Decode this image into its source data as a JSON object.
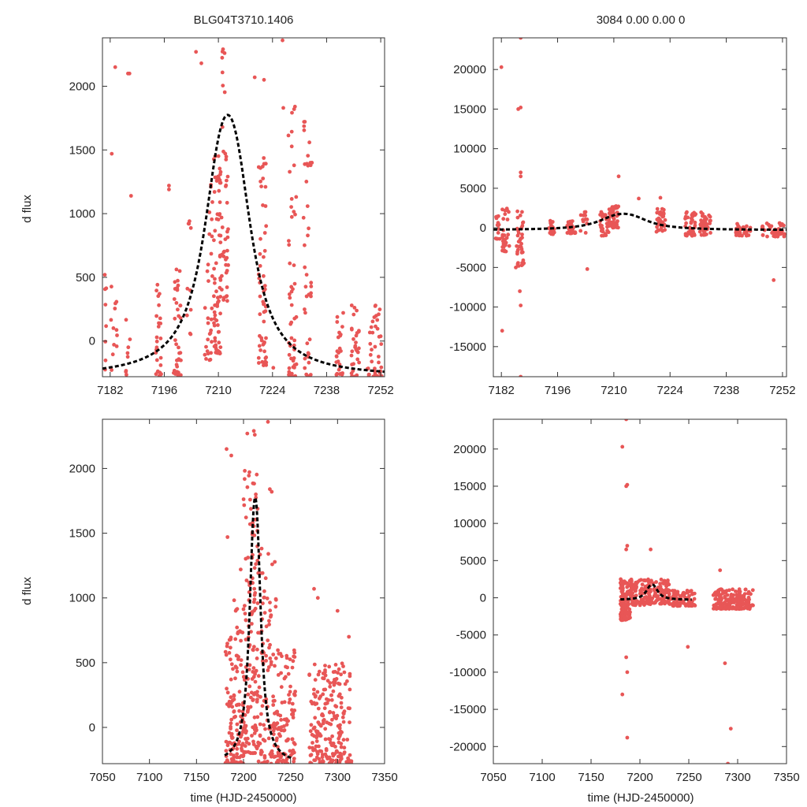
{
  "figure": {
    "title_left": "BLG04T3710.1406",
    "title_right": "3084  0.00  0.00  0",
    "colors": {
      "points": "#e85656",
      "model": "#000000",
      "frame": "#333333"
    }
  },
  "chart_data": [
    {
      "id": "top-left",
      "type": "scatter",
      "title": "BLG04T3710.1406",
      "xlabel": "",
      "ylabel": "d flux",
      "xlim": [
        7180,
        7253
      ],
      "ylim": [
        -280,
        2380
      ],
      "xticks": [
        7182,
        7196,
        7210,
        7224,
        7238,
        7252
      ],
      "yticks": [
        0,
        500,
        1000,
        1500,
        2000
      ],
      "model": {
        "t0": 7212.4,
        "amp": 2060,
        "base": -285,
        "tau": 4.6,
        "xrange": [
          7180,
          7253
        ]
      },
      "clusters": [
        {
          "x0": 7180.6,
          "x1": 7181.6,
          "n": 8,
          "ymin": -280,
          "ymax": 600
        },
        {
          "x0": 7182.2,
          "x1": 7183.8,
          "n": 12,
          "ymin": -280,
          "ymax": 450
        },
        {
          "x0": 7186.0,
          "x1": 7187.6,
          "n": 8,
          "ymin": -280,
          "ymax": 250
        },
        {
          "x0": 7193.8,
          "x1": 7195.2,
          "n": 26,
          "ymin": -280,
          "ymax": 480
        },
        {
          "x0": 7198.4,
          "x1": 7200.4,
          "n": 36,
          "ymin": -280,
          "ymax": 600
        },
        {
          "x0": 7201.6,
          "x1": 7203.4,
          "n": 10,
          "ymin": -200,
          "ymax": 1050
        },
        {
          "x0": 7206.4,
          "x1": 7208.6,
          "n": 30,
          "ymin": -150,
          "ymax": 1300
        },
        {
          "x0": 7208.8,
          "x1": 7210.6,
          "n": 70,
          "ymin": -100,
          "ymax": 1500
        },
        {
          "x0": 7210.8,
          "x1": 7212.6,
          "n": 40,
          "ymin": 300,
          "ymax": 2300
        },
        {
          "x0": 7220.4,
          "x1": 7222.4,
          "n": 55,
          "ymin": -200,
          "ymax": 1500
        },
        {
          "x0": 7228.0,
          "x1": 7230.2,
          "n": 50,
          "ymin": -280,
          "ymax": 1850
        },
        {
          "x0": 7232.0,
          "x1": 7234.0,
          "n": 40,
          "ymin": -280,
          "ymax": 1800
        },
        {
          "x0": 7240.4,
          "x1": 7242.4,
          "n": 25,
          "ymin": -280,
          "ymax": 280
        },
        {
          "x0": 7244.4,
          "x1": 7246.4,
          "n": 30,
          "ymin": -280,
          "ymax": 300
        },
        {
          "x0": 7248.4,
          "x1": 7252.6,
          "n": 40,
          "ymin": -280,
          "ymax": 300
        }
      ],
      "outliers": [
        {
          "x": 7183.3,
          "y": 2150
        },
        {
          "x": 7182.4,
          "y": 1470
        },
        {
          "x": 7186.6,
          "y": 2100
        },
        {
          "x": 7187.0,
          "y": 2100
        },
        {
          "x": 7187.4,
          "y": 1140
        },
        {
          "x": 7197.2,
          "y": 1220
        },
        {
          "x": 7197.2,
          "y": 1190
        },
        {
          "x": 7204.2,
          "y": 2270
        },
        {
          "x": 7205.6,
          "y": 2180
        },
        {
          "x": 7211.2,
          "y": 2290
        },
        {
          "x": 7211.6,
          "y": 2260
        },
        {
          "x": 7219.4,
          "y": 2070
        },
        {
          "x": 7221.8,
          "y": 2050
        },
        {
          "x": 7226.6,
          "y": 2360
        },
        {
          "x": 7226.8,
          "y": 1830
        },
        {
          "x": 7229.6,
          "y": 1820
        },
        {
          "x": 7234.2,
          "y": 1400
        },
        {
          "x": 7224.2,
          "y": -210
        }
      ]
    },
    {
      "id": "top-right",
      "type": "scatter",
      "title": "3084  0.00  0.00  0",
      "xlabel": "",
      "ylabel": "",
      "xlim": [
        7180,
        7253
      ],
      "ylim": [
        -18800,
        24000
      ],
      "xticks": [
        7182,
        7196,
        7210,
        7224,
        7238,
        7252
      ],
      "yticks": [
        -15000,
        -10000,
        -5000,
        0,
        5000,
        10000,
        15000,
        20000
      ],
      "model": {
        "t0": 7212.4,
        "amp": 2060,
        "base": -285,
        "tau": 4.6,
        "xrange": [
          7180,
          7253
        ]
      },
      "clusters": [
        {
          "x0": 7180.6,
          "x1": 7181.6,
          "n": 14,
          "ymin": -1400,
          "ymax": 1500
        },
        {
          "x0": 7182.2,
          "x1": 7184.0,
          "n": 30,
          "ymin": -3000,
          "ymax": 2500
        },
        {
          "x0": 7185.8,
          "x1": 7187.6,
          "n": 40,
          "ymin": -5000,
          "ymax": 2500
        },
        {
          "x0": 7193.8,
          "x1": 7195.4,
          "n": 25,
          "ymin": -800,
          "ymax": 900
        },
        {
          "x0": 7198.4,
          "x1": 7200.6,
          "n": 30,
          "ymin": -700,
          "ymax": 900
        },
        {
          "x0": 7201.6,
          "x1": 7203.4,
          "n": 12,
          "ymin": -700,
          "ymax": 2500
        },
        {
          "x0": 7206.4,
          "x1": 7208.8,
          "n": 28,
          "ymin": -1000,
          "ymax": 2000
        },
        {
          "x0": 7208.8,
          "x1": 7211.2,
          "n": 45,
          "ymin": 0,
          "ymax": 2800
        },
        {
          "x0": 7220.6,
          "x1": 7222.8,
          "n": 35,
          "ymin": -500,
          "ymax": 2500
        },
        {
          "x0": 7227.6,
          "x1": 7230.4,
          "n": 45,
          "ymin": -1000,
          "ymax": 2000
        },
        {
          "x0": 7231.4,
          "x1": 7234.2,
          "n": 45,
          "ymin": -900,
          "ymax": 2000
        },
        {
          "x0": 7240.4,
          "x1": 7244.0,
          "n": 35,
          "ymin": -1000,
          "ymax": 700
        },
        {
          "x0": 7246.8,
          "x1": 7252.6,
          "n": 45,
          "ymin": -1100,
          "ymax": 700
        }
      ],
      "outliers": [
        {
          "x": 7182.0,
          "y": 20300
        },
        {
          "x": 7186.8,
          "y": 24000
        },
        {
          "x": 7186.2,
          "y": 15000
        },
        {
          "x": 7186.8,
          "y": 15200
        },
        {
          "x": 7186.8,
          "y": 7000
        },
        {
          "x": 7186.8,
          "y": 6500
        },
        {
          "x": 7182.2,
          "y": -13000
        },
        {
          "x": 7186.8,
          "y": -9800
        },
        {
          "x": 7186.6,
          "y": -8000
        },
        {
          "x": 7186.8,
          "y": -18800
        },
        {
          "x": 7185.6,
          "y": -5000
        },
        {
          "x": 7211.2,
          "y": 6500
        },
        {
          "x": 7221.6,
          "y": 3800
        },
        {
          "x": 7216.2,
          "y": 3700
        },
        {
          "x": 7203.4,
          "y": -5200
        },
        {
          "x": 7249.8,
          "y": -6600
        }
      ]
    },
    {
      "id": "bottom-left",
      "type": "scatter",
      "title": "",
      "xlabel": "time (HJD-2450000)",
      "ylabel": "d flux",
      "xlim": [
        7050,
        7350
      ],
      "ylim": [
        -280,
        2380
      ],
      "xticks": [
        7050,
        7100,
        7150,
        7200,
        7250,
        7300,
        7350
      ],
      "yticks": [
        0,
        500,
        1000,
        1500,
        2000
      ],
      "model": {
        "t0": 7212.4,
        "amp": 2060,
        "base": -285,
        "tau": 4.6,
        "xrange": [
          7180,
          7253
        ]
      },
      "clusters": [
        {
          "x0": 7180,
          "x1": 7190,
          "n": 60,
          "ymin": -280,
          "ymax": 700
        },
        {
          "x0": 7190,
          "x1": 7200,
          "n": 70,
          "ymin": -280,
          "ymax": 1000
        },
        {
          "x0": 7200,
          "x1": 7215,
          "n": 140,
          "ymin": -200,
          "ymax": 2000
        },
        {
          "x0": 7215,
          "x1": 7235,
          "n": 110,
          "ymin": -280,
          "ymax": 1400
        },
        {
          "x0": 7235,
          "x1": 7255,
          "n": 100,
          "ymin": -280,
          "ymax": 600
        },
        {
          "x0": 7270,
          "x1": 7295,
          "n": 120,
          "ymin": -280,
          "ymax": 500
        },
        {
          "x0": 7295,
          "x1": 7315,
          "n": 90,
          "ymin": -280,
          "ymax": 500
        }
      ],
      "outliers": [
        {
          "x": 7182,
          "y": 2150
        },
        {
          "x": 7183,
          "y": 1470
        },
        {
          "x": 7187,
          "y": 2100
        },
        {
          "x": 7197,
          "y": 1220
        },
        {
          "x": 7204,
          "y": 2270
        },
        {
          "x": 7211,
          "y": 2290
        },
        {
          "x": 7212,
          "y": 2260
        },
        {
          "x": 7226,
          "y": 2360
        },
        {
          "x": 7228,
          "y": 1840
        },
        {
          "x": 7230,
          "y": 1820
        },
        {
          "x": 7275,
          "y": 1070
        },
        {
          "x": 7279,
          "y": 1000
        },
        {
          "x": 7300,
          "y": 900
        },
        {
          "x": 7312,
          "y": 700
        }
      ]
    },
    {
      "id": "bottom-right",
      "type": "scatter",
      "title": "",
      "xlabel": "time (HJD-2450000)",
      "ylabel": "",
      "xlim": [
        7050,
        7350
      ],
      "ylim": [
        -22300,
        24000
      ],
      "xticks": [
        7050,
        7100,
        7150,
        7200,
        7250,
        7300,
        7350
      ],
      "yticks": [
        -20000,
        -15000,
        -10000,
        -5000,
        0,
        5000,
        10000,
        15000,
        20000
      ],
      "model": {
        "t0": 7212.4,
        "amp": 2060,
        "base": -285,
        "tau": 4.6,
        "xrange": [
          7180,
          7253
        ]
      },
      "clusters": [
        {
          "x0": 7180,
          "x1": 7190,
          "n": 120,
          "ymin": -3000,
          "ymax": 2500
        },
        {
          "x0": 7190,
          "x1": 7212,
          "n": 110,
          "ymin": -1000,
          "ymax": 2500
        },
        {
          "x0": 7212,
          "x1": 7230,
          "n": 80,
          "ymin": -800,
          "ymax": 2500
        },
        {
          "x0": 7230,
          "x1": 7257,
          "n": 80,
          "ymin": -1100,
          "ymax": 1000
        },
        {
          "x0": 7275,
          "x1": 7316,
          "n": 200,
          "ymin": -1500,
          "ymax": 1200
        }
      ],
      "outliers": [
        {
          "x": 7182,
          "y": 20300
        },
        {
          "x": 7186,
          "y": 24000
        },
        {
          "x": 7187,
          "y": 15200
        },
        {
          "x": 7186,
          "y": 15000
        },
        {
          "x": 7187,
          "y": 7000
        },
        {
          "x": 7186,
          "y": 6500
        },
        {
          "x": 7182,
          "y": -13000
        },
        {
          "x": 7187,
          "y": -10000
        },
        {
          "x": 7186,
          "y": -8000
        },
        {
          "x": 7187,
          "y": -18800
        },
        {
          "x": 7211,
          "y": 6500
        },
        {
          "x": 7282,
          "y": 3700
        },
        {
          "x": 7287,
          "y": -8800
        },
        {
          "x": 7293,
          "y": -17600
        },
        {
          "x": 7290,
          "y": -22300
        },
        {
          "x": 7249,
          "y": -6600
        }
      ]
    }
  ]
}
